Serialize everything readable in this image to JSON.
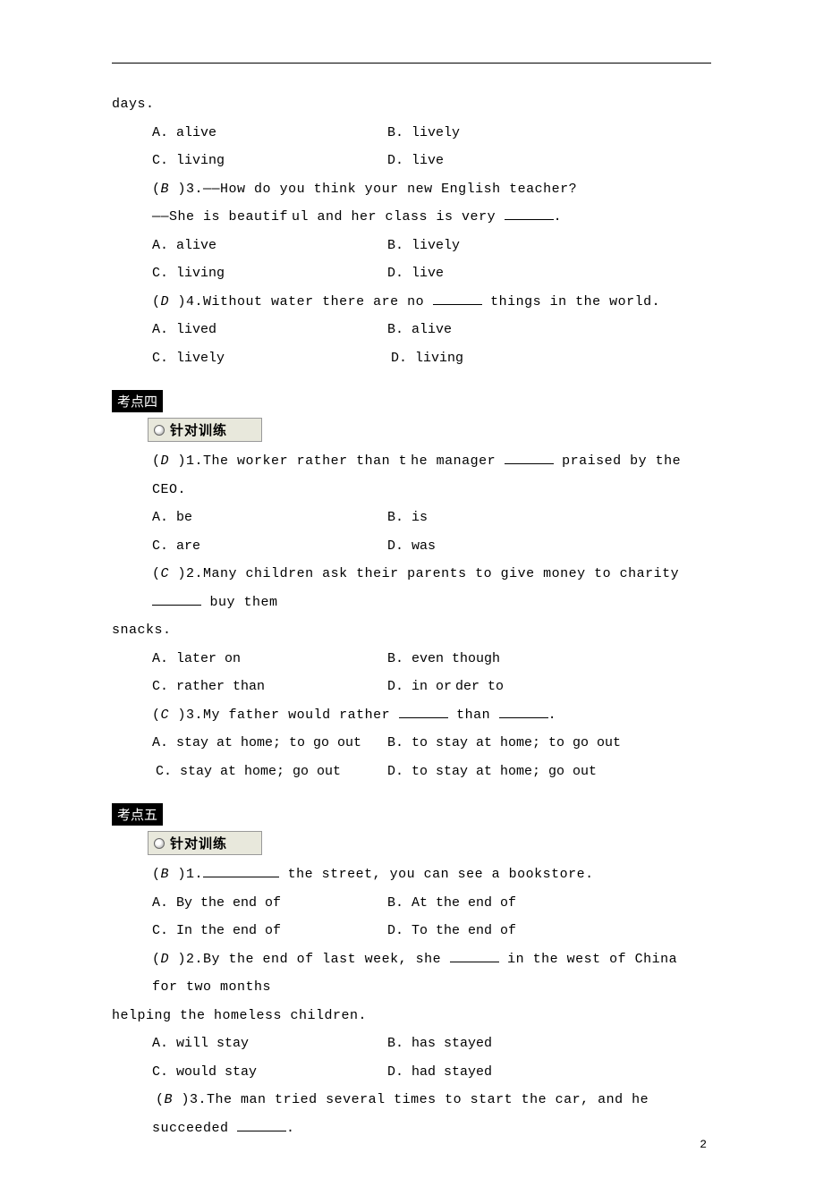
{
  "pageNumber": "2",
  "topFrag": "days.",
  "s3q2_opts": {
    "A": "A. alive",
    "B": "B. lively",
    "C": "C. living",
    "D": "D. live"
  },
  "s3q3_line1": "3.——How do you think your new English teacher?",
  "s3q3_ans": "B",
  "s3q3_line2_pre": "——She is beautif",
  "s3q3_line2_post": "ul and her class is very ",
  "s3q3_opts": {
    "A": "A. alive",
    "B": "B. lively",
    "C": "C. living",
    "D": "D. live"
  },
  "s3q4_pre": "4.Without water there are no ",
  "s3q4_post": " things in the world.",
  "s3q4_ans": "D",
  "s3q4_opts": {
    "A": "A. lived",
    "B": "B. alive",
    "C": "C. lively",
    "D": "D. living"
  },
  "sec4_title": "考点四",
  "practice_label": "针对训练",
  "s4q1_pre": "1.The worker rather than t",
  "s4q1_mid": "he manager ",
  "s4q1_post": " praised by the CEO.",
  "s4q1_ans": "D",
  "s4q1_opts": {
    "A": "A. be",
    "B": "B. is",
    "C": "C. are",
    "D": "D. was"
  },
  "s4q2_pre": "2.Many children ask their parents to give money to charity ",
  "s4q2_post": " buy them",
  "s4q2_cont": "snacks.",
  "s4q2_ans": "C",
  "s4q2_opts": {
    "A": "A. later on",
    "B": "B. even though",
    "C": "C. rather than",
    "D": "D. in or",
    "Dpost": "der to"
  },
  "s4q3_pre": "3.My father would rather ",
  "s4q3_mid": " than ",
  "s4q3_ans": "C",
  "s4q3_opts": {
    "A": "A. stay at home; to go out",
    "B": "B. to stay at home; to go out",
    "C": "C. stay at home; go out",
    "D": "D. to stay at home; go out"
  },
  "sec5_title": "考点五",
  "s5q1_pre": "1.",
  "s5q1_post": " the street, you can see a bookstore.",
  "s5q1_ans": "B",
  "s5q1_opts": {
    "A": "A. By the end of",
    "B": "B. At the end of",
    "C": "C. In the end of",
    "D": "D. To the end of"
  },
  "s5q2_pre": "2.By the end of last week, she ",
  "s5q2_post": " in the west of China for two months",
  "s5q2_cont": "helping the homeless children.",
  "s5q2_ans": "D",
  "s5q2_opts": {
    "A": "A. will stay",
    "B": "B. has stayed",
    "C": "C. would stay",
    "D": "D. had stayed"
  },
  "s5q3_pre": "3.The man tried several times to start the car, and he succeeded ",
  "s5q3_ans": "B"
}
